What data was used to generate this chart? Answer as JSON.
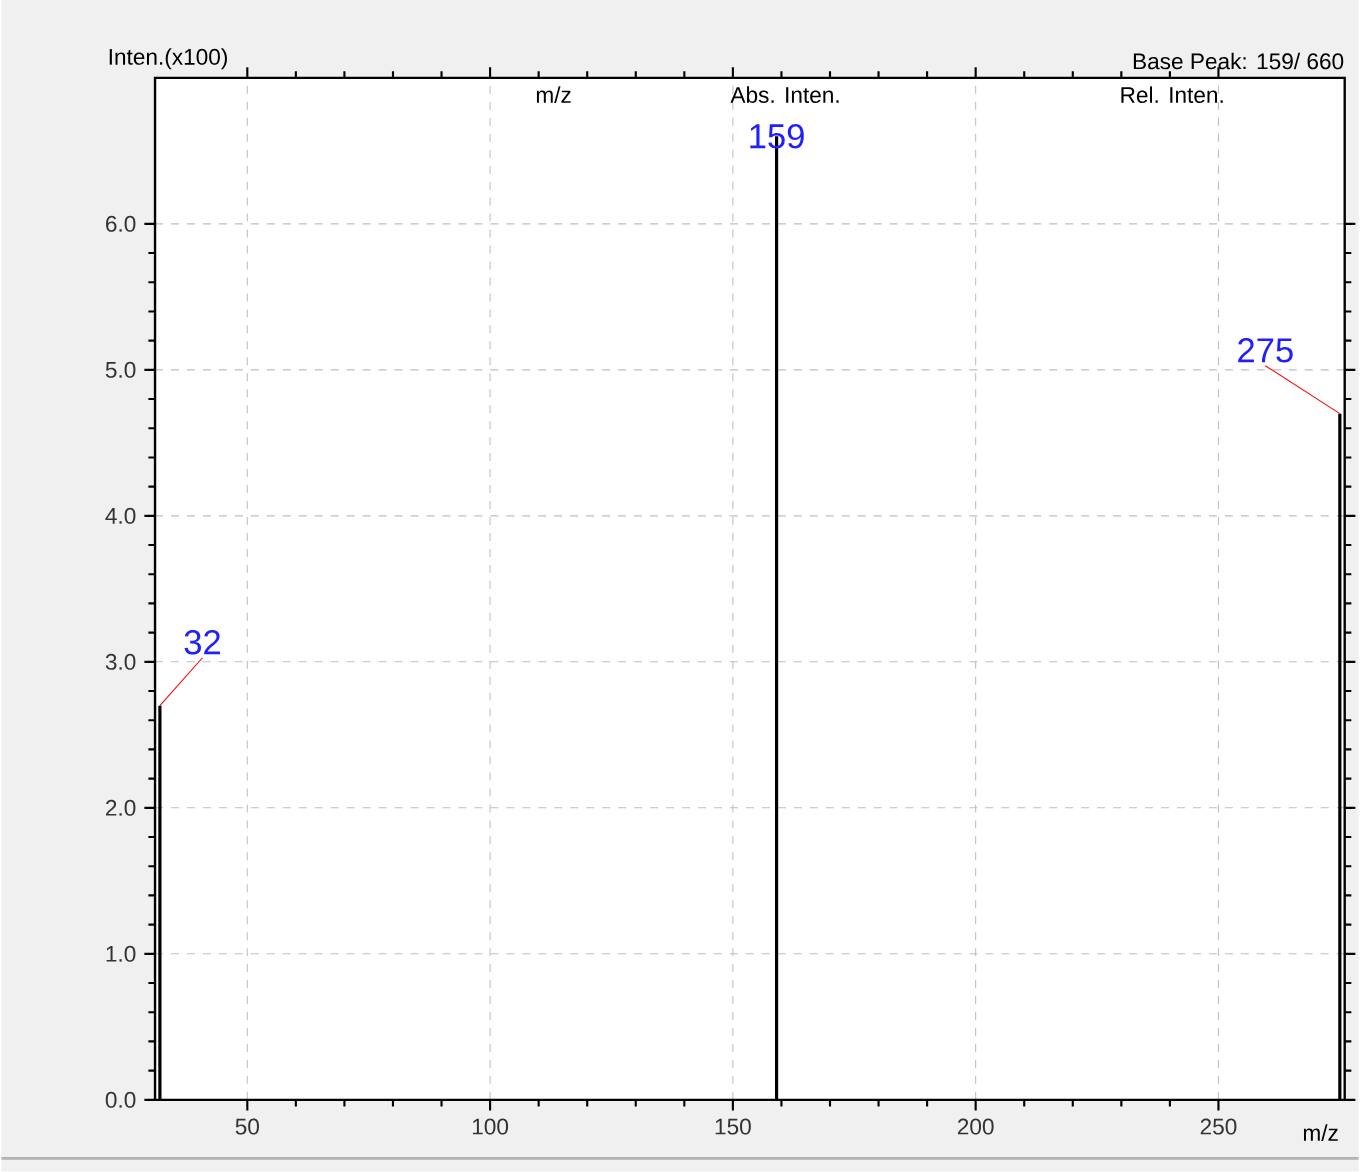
{
  "chart_data": {
    "type": "bar",
    "subtitle": "Base Peak: 159/   660",
    "xlabel": "m/z",
    "ylabel": "Inten.(x100)",
    "x": [
      32,
      159,
      275
    ],
    "values": [
      2.7,
      6.6,
      4.7
    ],
    "color": "#000000",
    "xlim": [
      31,
      276
    ],
    "ylim": [
      0,
      7
    ],
    "xticks": [
      50,
      100,
      150,
      200,
      250
    ],
    "yticks": [
      {
        "value": 0,
        "label": "0.0"
      },
      {
        "value": 1,
        "label": "1.0"
      },
      {
        "value": 2,
        "label": "2.0"
      },
      {
        "value": 3,
        "label": "3.0"
      },
      {
        "value": 4,
        "label": "4.0"
      },
      {
        "value": 5,
        "label": "5.0"
      },
      {
        "value": 6,
        "label": "6.0"
      }
    ],
    "grid": true,
    "annotations": [
      "m/z",
      "Abs. Inten.",
      "Rel. Inten.",
      {
        "text": "32",
        "x": 32,
        "y": 2.7
      },
      {
        "text": "159",
        "x": 159,
        "y": 6.6
      },
      {
        "text": "275",
        "x": 275,
        "y": 4.7
      }
    ]
  }
}
